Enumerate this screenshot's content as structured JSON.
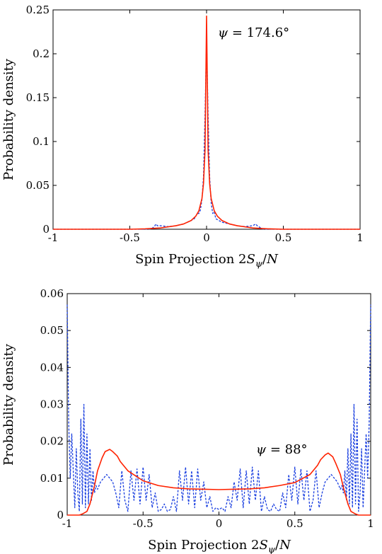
{
  "figure": "two-panel spin projection probability density",
  "colors": {
    "solid": "#ff2200",
    "dashed": "#1a3fe0",
    "axis": "#000000"
  },
  "chart_data": [
    {
      "type": "line",
      "xlabel": "Spin Projection 2Sψ/N",
      "ylabel": "Probability density",
      "annotation": "ψ = 174.6°",
      "xlim": [
        -1,
        1
      ],
      "ylim": [
        0,
        0.25
      ],
      "xticks": [
        "-1",
        "-0.5",
        "0",
        "0.5",
        "1"
      ],
      "xtick_values": [
        -1,
        -0.5,
        0,
        0.5,
        1
      ],
      "yticks": [
        "0",
        "0.05",
        "0.1",
        "0.15",
        "0.2",
        "0.25"
      ],
      "ytick_values": [
        0,
        0.05,
        0.1,
        0.15,
        0.2,
        0.25
      ],
      "series": [
        {
          "style": "solid",
          "x": [
            -1,
            -0.5,
            -0.4,
            -0.3,
            -0.2,
            -0.15,
            -0.1,
            -0.07,
            -0.05,
            -0.03,
            -0.02,
            -0.01,
            0,
            0.01,
            0.02,
            0.03,
            0.05,
            0.07,
            0.1,
            0.15,
            0.2,
            0.3,
            0.4,
            0.5,
            1
          ],
          "y": [
            0,
            0,
            0.0005,
            0.0015,
            0.004,
            0.006,
            0.01,
            0.015,
            0.021,
            0.035,
            0.052,
            0.09,
            0.243,
            0.09,
            0.052,
            0.035,
            0.021,
            0.015,
            0.01,
            0.006,
            0.004,
            0.0015,
            0.0005,
            0,
            0
          ]
        },
        {
          "style": "dashed",
          "x": [
            -1,
            -0.4,
            -0.36,
            -0.34,
            -0.33,
            -0.32,
            -0.3,
            -0.25,
            -0.2,
            -0.15,
            -0.1,
            -0.08,
            -0.06,
            -0.05,
            -0.04,
            -0.03,
            -0.02,
            -0.01,
            0,
            0.01,
            0.02,
            0.03,
            0.04,
            0.05,
            0.06,
            0.08,
            0.1,
            0.15,
            0.2,
            0.25,
            0.3,
            0.32,
            0.33,
            0.34,
            0.36,
            0.4,
            1
          ],
          "y": [
            0,
            0,
            0.0005,
            0.003,
            0.006,
            0.004,
            0.004,
            0.003,
            0.004,
            0.006,
            0.01,
            0.012,
            0.018,
            0.018,
            0.022,
            0.034,
            0.06,
            0.13,
            0.217,
            0.13,
            0.06,
            0.03,
            0.018,
            0.02,
            0.012,
            0.01,
            0.008,
            0.006,
            0.004,
            0.003,
            0.004,
            0.006,
            0.004,
            0.003,
            0.0005,
            0,
            0
          ]
        }
      ]
    },
    {
      "type": "line",
      "xlabel": "Spin Projection 2Sψ/N",
      "ylabel": "Probability density",
      "annotation": "ψ = 88°",
      "xlim": [
        -1,
        1
      ],
      "ylim": [
        0,
        0.06
      ],
      "xticks": [
        "-1",
        "-0.5",
        "0",
        "0.5",
        "1"
      ],
      "xtick_values": [
        -1,
        -0.5,
        0,
        0.5,
        1
      ],
      "yticks": [
        "0",
        "0.01",
        "0.02",
        "0.03",
        "0.04",
        "0.05",
        "0.06"
      ],
      "ytick_values": [
        0,
        0.01,
        0.02,
        0.03,
        0.04,
        0.05,
        0.06
      ],
      "series": [
        {
          "style": "solid",
          "x": [
            -1,
            -0.92,
            -0.9,
            -0.87,
            -0.85,
            -0.82,
            -0.8,
            -0.77,
            -0.75,
            -0.72,
            -0.7,
            -0.67,
            -0.65,
            -0.6,
            -0.5,
            -0.4,
            -0.3,
            -0.2,
            -0.1,
            0,
            0.1,
            0.2,
            0.3,
            0.4,
            0.5,
            0.6,
            0.65,
            0.67,
            0.7,
            0.72,
            0.75,
            0.77,
            0.8,
            0.82,
            0.85,
            0.87,
            0.9,
            0.92,
            1
          ],
          "y": [
            0,
            0,
            0.0003,
            0.001,
            0.003,
            0.008,
            0.012,
            0.0155,
            0.0172,
            0.0178,
            0.0172,
            0.016,
            0.0145,
            0.012,
            0.0093,
            0.008,
            0.0074,
            0.0071,
            0.007,
            0.0069,
            0.007,
            0.0071,
            0.0074,
            0.008,
            0.0088,
            0.011,
            0.0135,
            0.015,
            0.0163,
            0.0168,
            0.0158,
            0.014,
            0.011,
            0.0075,
            0.003,
            0.001,
            0.0003,
            0,
            0
          ]
        },
        {
          "style": "dashed",
          "x": [
            -1,
            -0.99,
            -0.98,
            -0.97,
            -0.96,
            -0.95,
            -0.94,
            -0.93,
            -0.92,
            -0.91,
            -0.9,
            -0.89,
            -0.88,
            -0.87,
            -0.86,
            -0.85,
            -0.84,
            -0.83,
            -0.82,
            -0.81,
            -0.8,
            -0.78,
            -0.76,
            -0.74,
            -0.72,
            -0.7,
            -0.68,
            -0.66,
            -0.64,
            -0.62,
            -0.6,
            -0.58,
            -0.56,
            -0.54,
            -0.52,
            -0.5,
            -0.48,
            -0.46,
            -0.44,
            -0.42,
            -0.4,
            -0.38,
            -0.36,
            -0.34,
            -0.32,
            -0.3,
            -0.28,
            -0.26,
            -0.24,
            -0.22,
            -0.2,
            -0.18,
            -0.16,
            -0.14,
            -0.12,
            -0.1,
            -0.08,
            -0.06,
            -0.04,
            -0.02,
            0,
            0.02,
            0.04,
            0.06,
            0.08,
            0.1,
            0.12,
            0.14,
            0.16,
            0.18,
            0.2,
            0.22,
            0.24,
            0.26,
            0.28,
            0.3,
            0.32,
            0.34,
            0.36,
            0.38,
            0.4,
            0.42,
            0.44,
            0.46,
            0.48,
            0.5,
            0.52,
            0.54,
            0.56,
            0.58,
            0.6,
            0.62,
            0.64,
            0.66,
            0.68,
            0.7,
            0.72,
            0.74,
            0.76,
            0.78,
            0.8,
            0.81,
            0.82,
            0.83,
            0.84,
            0.85,
            0.86,
            0.87,
            0.88,
            0.89,
            0.9,
            0.91,
            0.92,
            0.93,
            0.94,
            0.95,
            0.96,
            0.97,
            0.98,
            0.99,
            1
          ],
          "y": [
            0.057,
            0.025,
            0.01,
            0.022,
            0.012,
            0.002,
            0.018,
            0.006,
            0.001,
            0.026,
            0.003,
            0.03,
            0.002,
            0.022,
            0.003,
            0.018,
            0.004,
            0.012,
            0.006,
            0.008,
            0.007,
            0.009,
            0.01,
            0.011,
            0.01,
            0.009,
            0.006,
            0.002,
            0.012,
            0.004,
            0.001,
            0.012,
            0.004,
            0.0125,
            0.003,
            0.013,
            0.004,
            0.011,
            0.002,
            0.006,
            0.001,
            0.0015,
            0.003,
            0.001,
            0.0015,
            0.005,
            0.001,
            0.012,
            0.004,
            0.013,
            0.003,
            0.012,
            0.002,
            0.0125,
            0.004,
            0.009,
            0.002,
            0.005,
            0.001,
            0.002,
            0.0015,
            0.002,
            0.001,
            0.005,
            0.002,
            0.009,
            0.004,
            0.0125,
            0.002,
            0.012,
            0.003,
            0.013,
            0.004,
            0.012,
            0.001,
            0.005,
            0.0015,
            0.001,
            0.003,
            0.0015,
            0.001,
            0.006,
            0.002,
            0.011,
            0.004,
            0.013,
            0.003,
            0.0125,
            0.004,
            0.012,
            0.001,
            0.004,
            0.012,
            0.002,
            0.006,
            0.009,
            0.01,
            0.011,
            0.01,
            0.009,
            0.007,
            0.008,
            0.006,
            0.012,
            0.004,
            0.018,
            0.003,
            0.022,
            0.002,
            0.03,
            0.003,
            0.026,
            0.001,
            0.006,
            0.018,
            0.002,
            0.012,
            0.022,
            0.01,
            0.025,
            0.057
          ]
        }
      ]
    }
  ]
}
